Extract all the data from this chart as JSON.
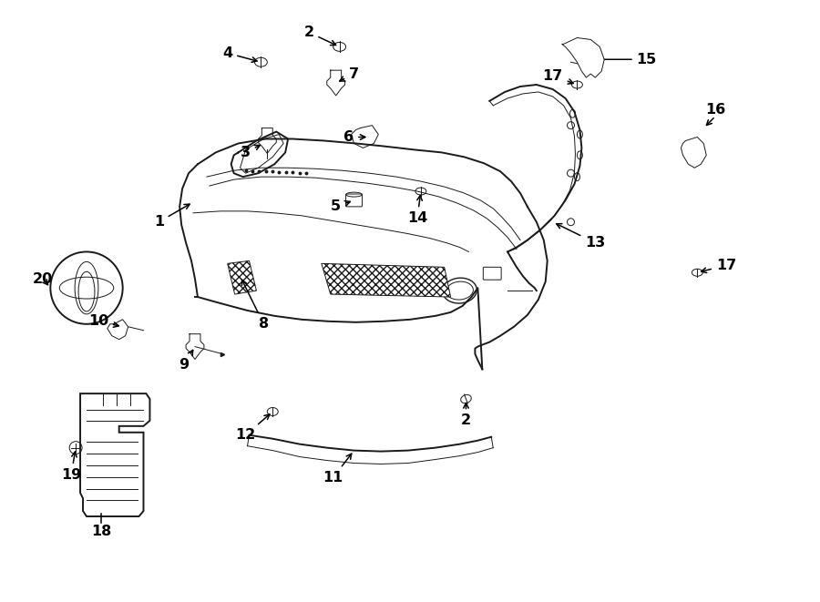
{
  "background_color": "#ffffff",
  "line_color": "#1a1a1a",
  "fig_width": 9.0,
  "fig_height": 6.61,
  "lw_main": 1.4,
  "lw_med": 1.0,
  "lw_thin": 0.7,
  "label_fontsize": 11.5
}
